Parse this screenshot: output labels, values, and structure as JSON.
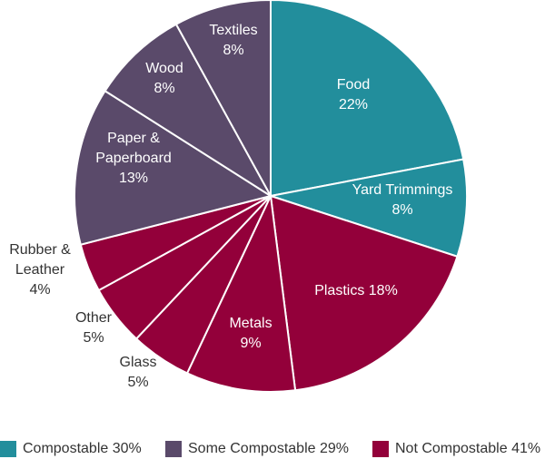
{
  "chart_data": {
    "type": "pie",
    "title": "",
    "start": "12 o'clock, clockwise",
    "slices": [
      {
        "label": "Food",
        "value": 22,
        "value_label": "22%",
        "group": "Compostable",
        "color": "#228e9c"
      },
      {
        "label": "Yard Trimmings",
        "value": 8,
        "value_label": "8%",
        "group": "Compostable",
        "color": "#228e9c"
      },
      {
        "label": "Plastics",
        "value": 18,
        "value_label": "18%",
        "group": "Not Compostable",
        "color": "#93003a"
      },
      {
        "label": "Metals",
        "value": 9,
        "value_label": "9%",
        "group": "Not Compostable",
        "color": "#93003a"
      },
      {
        "label": "Glass",
        "value": 5,
        "value_label": "5%",
        "group": "Not Compostable",
        "color": "#93003a"
      },
      {
        "label": "Other",
        "value": 5,
        "value_label": "5%",
        "group": "Not Compostable",
        "color": "#93003a"
      },
      {
        "label": "Rubber & Leather",
        "value": 4,
        "value_label": "4%",
        "group": "Not Compostable",
        "color": "#93003a"
      },
      {
        "label": "Paper & Paperboard",
        "value": 13,
        "value_label": "13%",
        "group": "Some Compostable",
        "color": "#5a4a6a"
      },
      {
        "label": "Wood",
        "value": 8,
        "value_label": "8%",
        "group": "Some Compostable",
        "color": "#5a4a6a"
      },
      {
        "label": "Textiles",
        "value": 8,
        "value_label": "8%",
        "group": "Some Compostable",
        "color": "#5a4a6a"
      }
    ],
    "legend_position": "bottom",
    "legend": [
      {
        "label": "Compostable 30%",
        "color": "#228e9c"
      },
      {
        "label": "Some Compostable 29%",
        "color": "#5a4a6a"
      },
      {
        "label": "Not Compostable 41%",
        "color": "#93003a"
      }
    ]
  }
}
